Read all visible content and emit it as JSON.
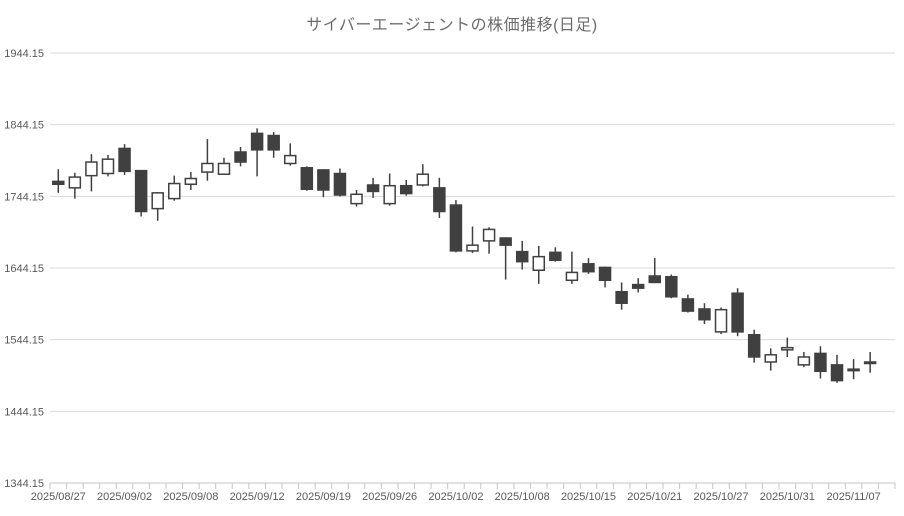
{
  "chart_data": {
    "type": "candlestick",
    "title": "サイバーエージェントの株価推移(日足)",
    "xlabel": "",
    "ylabel": "",
    "y_min": 1344.15,
    "y_max": 1944.15,
    "grid": true,
    "legend": false,
    "y_ticks": [
      {
        "label": "1944.15",
        "value": 1944.15
      },
      {
        "label": "1844.15",
        "value": 1844.15
      },
      {
        "label": "1744.15",
        "value": 1744.15
      },
      {
        "label": "1644.15",
        "value": 1644.15
      },
      {
        "label": "1544.15",
        "value": 1544.15
      },
      {
        "label": "1444.15",
        "value": 1444.15
      },
      {
        "label": "1344.15",
        "value": 1344.15
      }
    ],
    "x_labels": [
      {
        "text": "2025/08/27",
        "slot": 0
      },
      {
        "text": "2025/09/02",
        "slot": 4
      },
      {
        "text": "2025/09/08",
        "slot": 8
      },
      {
        "text": "2025/09/12",
        "slot": 12
      },
      {
        "text": "2025/09/19",
        "slot": 16
      },
      {
        "text": "2025/09/26",
        "slot": 20
      },
      {
        "text": "2025/10/02",
        "slot": 24
      },
      {
        "text": "2025/10/08",
        "slot": 28
      },
      {
        "text": "2025/10/15",
        "slot": 32
      },
      {
        "text": "2025/10/21",
        "slot": 36
      },
      {
        "text": "2025/10/27",
        "slot": 40
      },
      {
        "text": "2025/10/31",
        "slot": 44
      },
      {
        "text": "2025/11/07",
        "slot": 48
      }
    ],
    "candles_format": [
      "open",
      "high",
      "low",
      "close"
    ],
    "candles": [
      [
        1765,
        1782,
        1749,
        1761
      ],
      [
        1756,
        1777,
        1741,
        1771
      ],
      [
        1773,
        1803,
        1751,
        1792
      ],
      [
        1776,
        1802,
        1772,
        1796
      ],
      [
        1811,
        1817,
        1774,
        1779
      ],
      [
        1780,
        1781,
        1716,
        1723
      ],
      [
        1727,
        1750,
        1710,
        1749
      ],
      [
        1741,
        1773,
        1738,
        1762
      ],
      [
        1761,
        1778,
        1753,
        1769
      ],
      [
        1778,
        1824,
        1766,
        1790
      ],
      [
        1775,
        1798,
        1774,
        1790
      ],
      [
        1806,
        1813,
        1786,
        1792
      ],
      [
        1832,
        1839,
        1772,
        1809
      ],
      [
        1829,
        1834,
        1798,
        1809
      ],
      [
        1790,
        1818,
        1787,
        1801
      ],
      [
        1784,
        1786,
        1752,
        1754
      ],
      [
        1781,
        1782,
        1743,
        1753
      ],
      [
        1776,
        1783,
        1744,
        1746
      ],
      [
        1734,
        1753,
        1730,
        1747
      ],
      [
        1760,
        1770,
        1742,
        1751
      ],
      [
        1734,
        1776,
        1731,
        1759
      ],
      [
        1759,
        1767,
        1745,
        1748
      ],
      [
        1760,
        1789,
        1758,
        1775
      ],
      [
        1756,
        1770,
        1714,
        1723
      ],
      [
        1732,
        1739,
        1666,
        1668
      ],
      [
        1668,
        1702,
        1665,
        1676
      ],
      [
        1682,
        1701,
        1664,
        1698
      ],
      [
        1686,
        1687,
        1628,
        1676
      ],
      [
        1667,
        1682,
        1642,
        1653
      ],
      [
        1641,
        1675,
        1622,
        1660
      ],
      [
        1666,
        1673,
        1653,
        1655
      ],
      [
        1627,
        1667,
        1622,
        1638
      ],
      [
        1650,
        1658,
        1636,
        1639
      ],
      [
        1645,
        1646,
        1617,
        1627
      ],
      [
        1611,
        1624,
        1586,
        1595
      ],
      [
        1621,
        1630,
        1610,
        1616
      ],
      [
        1633,
        1658,
        1623,
        1624
      ],
      [
        1632,
        1635,
        1602,
        1604
      ],
      [
        1601,
        1607,
        1582,
        1584
      ],
      [
        1587,
        1595,
        1566,
        1572
      ],
      [
        1555,
        1589,
        1552,
        1586
      ],
      [
        1609,
        1616,
        1549,
        1555
      ],
      [
        1551,
        1558,
        1512,
        1520
      ],
      [
        1513,
        1532,
        1501,
        1523
      ],
      [
        1530,
        1547,
        1520,
        1533
      ],
      [
        1509,
        1527,
        1506,
        1520
      ],
      [
        1525,
        1535,
        1490,
        1500
      ],
      [
        1509,
        1523,
        1484,
        1487
      ],
      [
        1503,
        1517,
        1489,
        1501
      ],
      [
        1511,
        1527,
        1498,
        1513
      ]
    ],
    "colors": {
      "up_fill": "#ffffff",
      "down_fill": "#404040",
      "candle_border": "#404040",
      "wick": "#404040",
      "gridline": "#d9d9d9",
      "axis": "#c6c6c6",
      "axis_text": "#595959",
      "title_text": "#6d6d6d",
      "background": "#ffffff"
    }
  }
}
